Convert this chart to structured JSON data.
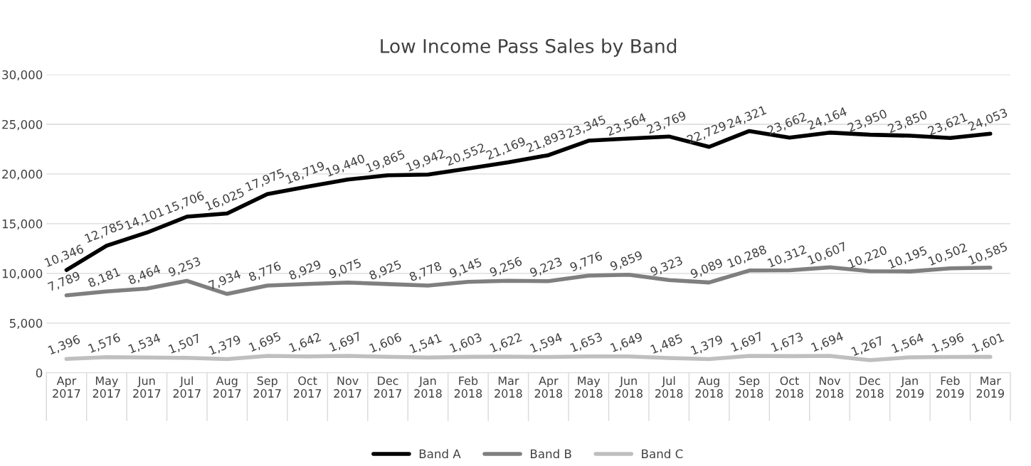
{
  "chart_data": {
    "type": "line",
    "title": "Low Income Pass Sales by Band",
    "categories": [
      "Apr\n2017",
      "May\n2017",
      "Jun\n2017",
      "Jul\n2017",
      "Aug\n2017",
      "Sep\n2017",
      "Oct\n2017",
      "Nov\n2017",
      "Dec\n2017",
      "Jan\n2018",
      "Feb\n2018",
      "Mar\n2018",
      "Apr\n2018",
      "May\n2018",
      "Jun\n2018",
      "Jul\n2018",
      "Aug\n2018",
      "Sep\n2018",
      "Oct\n2018",
      "Nov\n2018",
      "Dec\n2018",
      "Jan\n2019",
      "Feb\n2019",
      "Mar\n2019"
    ],
    "series": [
      {
        "name": "Band A",
        "color": "#000000",
        "values": [
          10346,
          12785,
          14101,
          15706,
          16025,
          17975,
          18719,
          19440,
          19865,
          19942,
          20552,
          21169,
          21893,
          23345,
          23564,
          23769,
          22729,
          24321,
          23662,
          24164,
          23950,
          23850,
          23621,
          24053
        ],
        "value_labels": [
          "10,346",
          "12,785",
          "14,101",
          "15,706",
          "16,025",
          "17,975",
          "18,719",
          "19,440",
          "19,865",
          "19,942",
          "20,552",
          "21,169",
          "21,893",
          "23,345",
          "23,564",
          "23,769",
          "22,729",
          "24,321",
          "23,662",
          "24,164",
          "23,950",
          "23,850",
          "23,621",
          "24,053"
        ]
      },
      {
        "name": "Band B",
        "color": "#7f7f7f",
        "values": [
          7789,
          8181,
          8464,
          9253,
          7934,
          8776,
          8929,
          9075,
          8925,
          8778,
          9145,
          9256,
          9223,
          9776,
          9859,
          9323,
          9089,
          10288,
          10312,
          10607,
          10220,
          10195,
          10502,
          10585
        ],
        "value_labels": [
          "7,789",
          "8,181",
          "8,464",
          "9,253",
          "7,934",
          "8,776",
          "8,929",
          "9,075",
          "8,925",
          "8,778",
          "9,145",
          "9,256",
          "9,223",
          "9,776",
          "9,859",
          "9,323",
          "9,089",
          "10,288",
          "10,312",
          "10,607",
          "10,220",
          "10,195",
          "10,502",
          "10,585"
        ]
      },
      {
        "name": "Band C",
        "color": "#bfbfbf",
        "values": [
          1396,
          1576,
          1534,
          1507,
          1379,
          1695,
          1642,
          1697,
          1606,
          1541,
          1603,
          1622,
          1594,
          1653,
          1649,
          1485,
          1379,
          1697,
          1673,
          1694,
          1267,
          1564,
          1596,
          1601
        ],
        "value_labels": [
          "1,396",
          "1,576",
          "1,534",
          "1,507",
          "1,379",
          "1,695",
          "1,642",
          "1,697",
          "1,606",
          "1,541",
          "1,603",
          "1,622",
          "1,594",
          "1,653",
          "1,649",
          "1,485",
          "1,379",
          "1,697",
          "1,673",
          "1,694",
          "1,267",
          "1,564",
          "1,596",
          "1,601"
        ]
      }
    ],
    "ylim": [
      0,
      30000
    ],
    "yticks": [
      0,
      {
        "value": 5000,
        "label": "5,000"
      },
      {
        "value": 10000,
        "label": "10,000"
      },
      {
        "value": 15000,
        "label": "15,000"
      },
      {
        "value": 20000,
        "label": "20,000"
      },
      {
        "value": 25000,
        "label": "25,000"
      },
      {
        "value": 30000,
        "label": "30,000"
      }
    ],
    "grid": "y",
    "legend": "bottom",
    "marker": "none",
    "line_style": "solid"
  }
}
